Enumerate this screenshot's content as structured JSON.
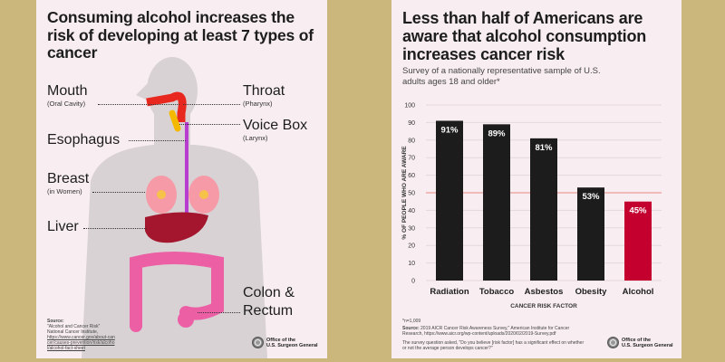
{
  "left": {
    "title": "Consuming alcohol increases the risk of developing at least 7 types of cancer",
    "labels": {
      "mouth": "Mouth",
      "mouth_sub": "(Oral Cavity)",
      "throat": "Throat",
      "throat_sub": "(Pharynx)",
      "voice": "Voice Box",
      "voice_sub": "(Larynx)",
      "esophagus": "Esophagus",
      "breast": "Breast",
      "breast_sub": "(in Women)",
      "liver": "Liver",
      "colon1": "Colon &",
      "colon2": "Rectum"
    },
    "source": {
      "heading": "Source:",
      "line1": "\"Alcohol and Cancer Risk\"",
      "line2": "National Cancer Institute,",
      "url": "https://www.cancer.gov/about-cancer/causes-prevention/risk/alcohol/alcohol-fact-sheet"
    },
    "seal": {
      "line1": "Office of the",
      "line2": "U.S. Surgeon General"
    },
    "colors": {
      "mouth": "#e8281e",
      "voice": "#f5b800",
      "esophagus": "#b83ccf",
      "breast": "#f59aa6",
      "liver": "#a3162e",
      "colon": "#ec5fa5",
      "body": "#d8d2d4"
    }
  },
  "right": {
    "title": "Less than half of Americans are aware that alcohol consumption increases cancer risk",
    "subtitle": "Survey of a nationally representative sample of U.S. adults ages 18 and older*",
    "footnote_n": "*n=1,009",
    "source_label": "Source:",
    "source": "2019 AICR Cancer Risk Awareness Survey,\" American Institute for Cancer Research, https://www.aicr.org/wp-content/uploads/2020/02/2019-Survey.pdf",
    "question": "The survey question asked, \"Do you believe [risk factor] has a significant effect on whether or not the average person develops cancer?\"",
    "seal": {
      "line1": "Office of the",
      "line2": "U.S. Surgeon General"
    }
  },
  "chart_data": {
    "type": "bar",
    "categories": [
      "Radiation",
      "Tobacco",
      "Asbestos",
      "Obesity",
      "Alcohol"
    ],
    "values": [
      91,
      89,
      81,
      53,
      45
    ],
    "data_labels": [
      "91%",
      "89%",
      "81%",
      "53%",
      "45%"
    ],
    "xlabel": "CANCER RISK FACTOR",
    "ylabel": "% OF PEOPLE WHO ARE AWARE",
    "ylim": [
      0,
      100
    ],
    "yticks": [
      0,
      10,
      20,
      30,
      40,
      50,
      60,
      70,
      80,
      90,
      100
    ],
    "reference_line": 50,
    "grid": true,
    "colors": {
      "default": "#1c1c1c",
      "highlight": "#c4002f",
      "reference": "#e8877f",
      "grid": "#e3d7dc"
    }
  }
}
